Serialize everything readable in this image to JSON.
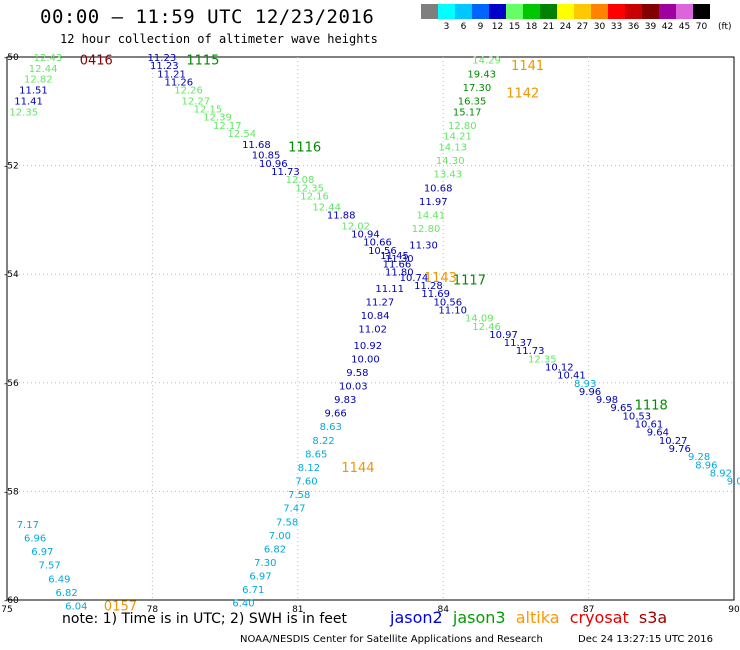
{
  "header": {
    "title": "00:00 – 11:59 UTC 12/23/2016",
    "subtitle": "12 hour collection of altimeter wave heights"
  },
  "color_scale": {
    "unit": "(ft)",
    "entries": [
      {
        "label": "",
        "color": "#7f7f7f"
      },
      {
        "label": "3",
        "color": "#00ffff"
      },
      {
        "label": "6",
        "color": "#00c8ff"
      },
      {
        "label": "9",
        "color": "#0064ff"
      },
      {
        "label": "12",
        "color": "#0000c8"
      },
      {
        "label": "15",
        "color": "#64ff64"
      },
      {
        "label": "18",
        "color": "#00c800"
      },
      {
        "label": "21",
        "color": "#008200"
      },
      {
        "label": "24",
        "color": "#ffff00"
      },
      {
        "label": "27",
        "color": "#ffc800"
      },
      {
        "label": "30",
        "color": "#ff8200"
      },
      {
        "label": "33",
        "color": "#ff0000"
      },
      {
        "label": "36",
        "color": "#c80000"
      },
      {
        "label": "39",
        "color": "#820000"
      },
      {
        "label": "42",
        "color": "#a000a0"
      },
      {
        "label": "45",
        "color": "#dc64dc"
      },
      {
        "label": "70",
        "color": "#000000"
      }
    ]
  },
  "map": {
    "lon_ticks": [
      "75",
      "78",
      "81",
      "84",
      "87",
      "90"
    ],
    "lat_ticks": [
      "-50",
      "-52",
      "-54",
      "-56",
      "-58",
      "-60"
    ],
    "lon_range": [
      75,
      90
    ],
    "lat_range": [
      -50,
      -60
    ]
  },
  "colors": {
    "dblue": "#0000b4",
    "lgreen": "#64e664",
    "cyan": "#00aadc",
    "dgreen": "#008c00",
    "orange": "#f09600",
    "maroon": "#8c0000"
  },
  "measurements": [
    {
      "t": "12.43",
      "c": "lgreen",
      "lon": 75.55,
      "lat": -50.0
    },
    {
      "t": "12.44",
      "c": "lgreen",
      "lon": 75.45,
      "lat": -50.2
    },
    {
      "t": "12.82",
      "c": "lgreen",
      "lon": 75.35,
      "lat": -50.4
    },
    {
      "t": "11.51",
      "c": "dblue",
      "lon": 75.25,
      "lat": -50.6
    },
    {
      "t": "11.41",
      "c": "dblue",
      "lon": 75.15,
      "lat": -50.8
    },
    {
      "t": "12.35",
      "c": "lgreen",
      "lon": 75.05,
      "lat": -51.0
    },
    {
      "t": "11.23",
      "c": "dblue",
      "lon": 77.9,
      "lat": -50.0
    },
    {
      "t": "11.23",
      "c": "dblue",
      "lon": 77.95,
      "lat": -50.15
    },
    {
      "t": "11.21",
      "c": "dblue",
      "lon": 78.1,
      "lat": -50.3
    },
    {
      "t": "11.26",
      "c": "dblue",
      "lon": 78.25,
      "lat": -50.45
    },
    {
      "t": "12.26",
      "c": "lgreen",
      "lon": 78.45,
      "lat": -50.6
    },
    {
      "t": "12.27",
      "c": "lgreen",
      "lon": 78.6,
      "lat": -50.8
    },
    {
      "t": "12.15",
      "c": "lgreen",
      "lon": 78.85,
      "lat": -50.95
    },
    {
      "t": "12.39",
      "c": "lgreen",
      "lon": 79.05,
      "lat": -51.1
    },
    {
      "t": "12.17",
      "c": "lgreen",
      "lon": 79.25,
      "lat": -51.25
    },
    {
      "t": "12.54",
      "c": "lgreen",
      "lon": 79.55,
      "lat": -51.4
    },
    {
      "t": "11.68",
      "c": "dblue",
      "lon": 79.85,
      "lat": -51.6
    },
    {
      "t": "10.85",
      "c": "dblue",
      "lon": 80.05,
      "lat": -51.8
    },
    {
      "t": "10.96",
      "c": "dblue",
      "lon": 80.2,
      "lat": -51.95
    },
    {
      "t": "11.73",
      "c": "dblue",
      "lon": 80.45,
      "lat": -52.1
    },
    {
      "t": "12.08",
      "c": "lgreen",
      "lon": 80.75,
      "lat": -52.25
    },
    {
      "t": "12.35",
      "c": "lgreen",
      "lon": 80.95,
      "lat": -52.4
    },
    {
      "t": "12.16",
      "c": "lgreen",
      "lon": 81.05,
      "lat": -52.55
    },
    {
      "t": "12.44",
      "c": "lgreen",
      "lon": 81.3,
      "lat": -52.75
    },
    {
      "t": "11.88",
      "c": "dblue",
      "lon": 81.6,
      "lat": -52.9
    },
    {
      "t": "12.02",
      "c": "lgreen",
      "lon": 81.9,
      "lat": -53.1
    },
    {
      "t": "10.94",
      "c": "dblue",
      "lon": 82.1,
      "lat": -53.25
    },
    {
      "t": "10.66",
      "c": "dblue",
      "lon": 82.35,
      "lat": -53.4
    },
    {
      "t": "10.56",
      "c": "dblue",
      "lon": 82.45,
      "lat": -53.55
    },
    {
      "t": "11.45",
      "c": "dblue",
      "lon": 82.7,
      "lat": -53.65
    },
    {
      "t": "11.66",
      "c": "dblue",
      "lon": 82.75,
      "lat": -53.8
    },
    {
      "t": "11.80",
      "c": "dblue",
      "lon": 82.8,
      "lat": -53.95
    },
    {
      "t": "10.74",
      "c": "dblue",
      "lon": 83.1,
      "lat": -54.05
    },
    {
      "t": "11.28",
      "c": "dblue",
      "lon": 83.4,
      "lat": -54.2
    },
    {
      "t": "11.69",
      "c": "dblue",
      "lon": 83.55,
      "lat": -54.35
    },
    {
      "t": "10.56",
      "c": "dblue",
      "lon": 83.8,
      "lat": -54.5
    },
    {
      "t": "11.10",
      "c": "dblue",
      "lon": 83.9,
      "lat": -54.65
    },
    {
      "t": "14.09",
      "c": "lgreen",
      "lon": 84.45,
      "lat": -54.8
    },
    {
      "t": "12.46",
      "c": "lgreen",
      "lon": 84.6,
      "lat": -54.95
    },
    {
      "t": "10.97",
      "c": "dblue",
      "lon": 84.95,
      "lat": -55.1
    },
    {
      "t": "11.37",
      "c": "dblue",
      "lon": 85.25,
      "lat": -55.25
    },
    {
      "t": "11.73",
      "c": "dblue",
      "lon": 85.5,
      "lat": -55.4
    },
    {
      "t": "12.35",
      "c": "lgreen",
      "lon": 85.75,
      "lat": -55.55
    },
    {
      "t": "10.12",
      "c": "dblue",
      "lon": 86.1,
      "lat": -55.7
    },
    {
      "t": "10.41",
      "c": "dblue",
      "lon": 86.35,
      "lat": -55.85
    },
    {
      "t": "8.93",
      "c": "cyan",
      "lon": 86.7,
      "lat": -56.0
    },
    {
      "t": "9.96",
      "c": "dblue",
      "lon": 86.8,
      "lat": -56.15
    },
    {
      "t": "9.98",
      "c": "dblue",
      "lon": 87.15,
      "lat": -56.3
    },
    {
      "t": "9.65",
      "c": "dblue",
      "lon": 87.45,
      "lat": -56.45
    },
    {
      "t": "10.53",
      "c": "dblue",
      "lon": 87.7,
      "lat": -56.6
    },
    {
      "t": "10.61",
      "c": "dblue",
      "lon": 87.95,
      "lat": -56.75
    },
    {
      "t": "9.64",
      "c": "dblue",
      "lon": 88.2,
      "lat": -56.9
    },
    {
      "t": "10.27",
      "c": "dblue",
      "lon": 88.45,
      "lat": -57.05
    },
    {
      "t": "9.76",
      "c": "dblue",
      "lon": 88.65,
      "lat": -57.2
    },
    {
      "t": "9.28",
      "c": "cyan",
      "lon": 89.05,
      "lat": -57.35
    },
    {
      "t": "8.96",
      "c": "cyan",
      "lon": 89.2,
      "lat": -57.5
    },
    {
      "t": "8.92",
      "c": "cyan",
      "lon": 89.5,
      "lat": -57.65
    },
    {
      "t": "9.09",
      "c": "cyan",
      "lon": 89.85,
      "lat": -57.8
    },
    {
      "t": "14.29",
      "c": "lgreen",
      "lon": 84.6,
      "lat": -50.05
    },
    {
      "t": "19.43",
      "c": "dgreen",
      "lon": 84.5,
      "lat": -50.3
    },
    {
      "t": "17.30",
      "c": "dgreen",
      "lon": 84.4,
      "lat": -50.55
    },
    {
      "t": "16.35",
      "c": "dgreen",
      "lon": 84.3,
      "lat": -50.8
    },
    {
      "t": "15.17",
      "c": "dgreen",
      "lon": 84.2,
      "lat": -51.0
    },
    {
      "t": "12.80",
      "c": "lgreen",
      "lon": 84.1,
      "lat": -51.25
    },
    {
      "t": "14.21",
      "c": "lgreen",
      "lon": 84.0,
      "lat": -51.45
    },
    {
      "t": "14.13",
      "c": "lgreen",
      "lon": 83.9,
      "lat": -51.65
    },
    {
      "t": "14.30",
      "c": "lgreen",
      "lon": 83.85,
      "lat": -51.9
    },
    {
      "t": "13.43",
      "c": "lgreen",
      "lon": 83.8,
      "lat": -52.15
    },
    {
      "t": "10.68",
      "c": "dblue",
      "lon": 83.6,
      "lat": -52.4
    },
    {
      "t": "11.97",
      "c": "dblue",
      "lon": 83.5,
      "lat": -52.65
    },
    {
      "t": "14.41",
      "c": "lgreen",
      "lon": 83.45,
      "lat": -52.9
    },
    {
      "t": "12.80",
      "c": "lgreen",
      "lon": 83.35,
      "lat": -53.15
    },
    {
      "t": "11.30",
      "c": "dblue",
      "lon": 83.3,
      "lat": -53.45
    },
    {
      "t": "11.30",
      "c": "dblue",
      "lon": 82.8,
      "lat": -53.7
    },
    {
      "t": "11.11",
      "c": "dblue",
      "lon": 82.6,
      "lat": -54.25
    },
    {
      "t": "11.27",
      "c": "dblue",
      "lon": 82.4,
      "lat": -54.5
    },
    {
      "t": "10.84",
      "c": "dblue",
      "lon": 82.3,
      "lat": -54.75
    },
    {
      "t": "11.02",
      "c": "dblue",
      "lon": 82.25,
      "lat": -55.0
    },
    {
      "t": "10.92",
      "c": "dblue",
      "lon": 82.15,
      "lat": -55.3
    },
    {
      "t": "10.00",
      "c": "dblue",
      "lon": 82.1,
      "lat": -55.55
    },
    {
      "t": "9.58",
      "c": "dblue",
      "lon": 82.0,
      "lat": -55.8
    },
    {
      "t": "10.03",
      "c": "dblue",
      "lon": 81.85,
      "lat": -56.05
    },
    {
      "t": "9.83",
      "c": "dblue",
      "lon": 81.75,
      "lat": -56.3
    },
    {
      "t": "9.66",
      "c": "dblue",
      "lon": 81.55,
      "lat": -56.55
    },
    {
      "t": "8.63",
      "c": "cyan",
      "lon": 81.45,
      "lat": -56.8
    },
    {
      "t": "8.22",
      "c": "cyan",
      "lon": 81.3,
      "lat": -57.05
    },
    {
      "t": "8.65",
      "c": "cyan",
      "lon": 81.15,
      "lat": -57.3
    },
    {
      "t": "8.12",
      "c": "cyan",
      "lon": 81.0,
      "lat": -57.55
    },
    {
      "t": "7.60",
      "c": "cyan",
      "lon": 80.95,
      "lat": -57.8
    },
    {
      "t": "7.58",
      "c": "cyan",
      "lon": 80.8,
      "lat": -58.05
    },
    {
      "t": "7.47",
      "c": "cyan",
      "lon": 80.7,
      "lat": -58.3
    },
    {
      "t": "7.58",
      "c": "cyan",
      "lon": 80.55,
      "lat": -58.55
    },
    {
      "t": "7.00",
      "c": "cyan",
      "lon": 80.4,
      "lat": -58.8
    },
    {
      "t": "6.82",
      "c": "cyan",
      "lon": 80.3,
      "lat": -59.05
    },
    {
      "t": "7.30",
      "c": "cyan",
      "lon": 80.1,
      "lat": -59.3
    },
    {
      "t": "6.97",
      "c": "cyan",
      "lon": 80.0,
      "lat": -59.55
    },
    {
      "t": "6.71",
      "c": "cyan",
      "lon": 79.85,
      "lat": -59.8
    },
    {
      "t": "6.40",
      "c": "cyan",
      "lon": 79.65,
      "lat": -60.05
    },
    {
      "t": "7.17",
      "c": "cyan",
      "lon": 75.2,
      "lat": -58.6
    },
    {
      "t": "6.96",
      "c": "cyan",
      "lon": 75.35,
      "lat": -58.85
    },
    {
      "t": "6.97",
      "c": "cyan",
      "lon": 75.5,
      "lat": -59.1
    },
    {
      "t": "7.57",
      "c": "cyan",
      "lon": 75.65,
      "lat": -59.35
    },
    {
      "t": "6.49",
      "c": "cyan",
      "lon": 75.85,
      "lat": -59.6
    },
    {
      "t": "6.82",
      "c": "cyan",
      "lon": 76.0,
      "lat": -59.85
    },
    {
      "t": "6.04",
      "c": "cyan",
      "lon": 76.2,
      "lat": -60.1
    }
  ],
  "time_labels": [
    {
      "t": "0416",
      "c": "maroon",
      "lon": 76.5,
      "lat": -50.05
    },
    {
      "t": "1115",
      "c": "dgreen",
      "lon": 78.7,
      "lat": -50.05
    },
    {
      "t": "1116",
      "c": "dgreen",
      "lon": 80.8,
      "lat": -51.65
    },
    {
      "t": "1141",
      "c": "orange",
      "lon": 85.4,
      "lat": -50.15
    },
    {
      "t": "1142",
      "c": "orange",
      "lon": 85.3,
      "lat": -50.65
    },
    {
      "t": "1117",
      "c": "dgreen",
      "lon": 84.2,
      "lat": -54.1
    },
    {
      "t": "1143",
      "c": "orange",
      "lon": 83.6,
      "lat": -54.05
    },
    {
      "t": "1118",
      "c": "dgreen",
      "lon": 87.95,
      "lat": -56.4
    },
    {
      "t": "1144",
      "c": "orange",
      "lon": 81.9,
      "lat": -57.55
    },
    {
      "t": "0157",
      "c": "orange",
      "lon": 77.0,
      "lat": -60.1
    }
  ],
  "footer": {
    "note": "note: 1) Time is in UTC; 2) SWH is in feet",
    "satellites": [
      {
        "name": "jason2",
        "color": "#0000dc"
      },
      {
        "name": "jason3",
        "color": "#00a000"
      },
      {
        "name": "altika",
        "color": "#ff9600"
      },
      {
        "name": "cryosat",
        "color": "#e60000"
      },
      {
        "name": "s3a",
        "color": "#a00000"
      }
    ],
    "credit": "NOAA/NESDIS Center for Satellite Applications and Research",
    "timestamp": "Dec 24 13:27:15 UTC 2016"
  }
}
